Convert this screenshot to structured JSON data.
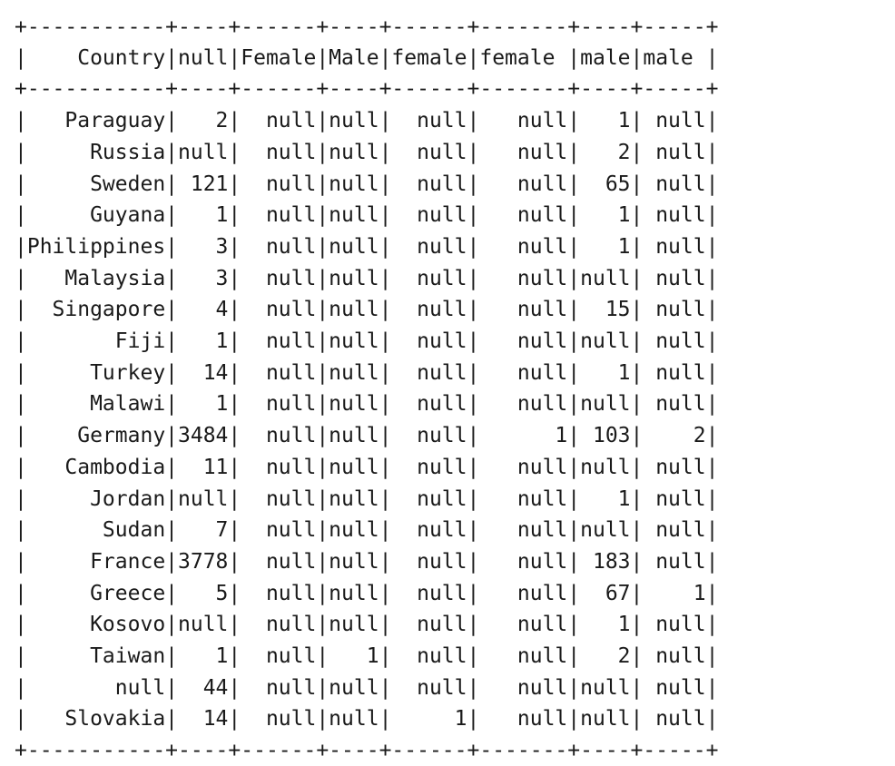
{
  "table": {
    "border": "+-----------+----+------+----+------+-------+----+-----+",
    "header": "|    Country|null|Female|Male|female|female |male|male |",
    "rows": [
      "|   Paraguay|   2|  null|null|  null|   null|   1| null|",
      "|     Russia|null|  null|null|  null|   null|   2| null|",
      "|     Sweden| 121|  null|null|  null|   null|  65| null|",
      "|     Guyana|   1|  null|null|  null|   null|   1| null|",
      "|Philippines|   3|  null|null|  null|   null|   1| null|",
      "|   Malaysia|   3|  null|null|  null|   null|null| null|",
      "|  Singapore|   4|  null|null|  null|   null|  15| null|",
      "|       Fiji|   1|  null|null|  null|   null|null| null|",
      "|     Turkey|  14|  null|null|  null|   null|   1| null|",
      "|     Malawi|   1|  null|null|  null|   null|null| null|",
      "|    Germany|3484|  null|null|  null|      1| 103|    2|",
      "|   Cambodia|  11|  null|null|  null|   null|null| null|",
      "|     Jordan|null|  null|null|  null|   null|   1| null|",
      "|      Sudan|   7|  null|null|  null|   null|null| null|",
      "|     France|3778|  null|null|  null|   null| 183| null|",
      "|     Greece|   5|  null|null|  null|   null|  67|    1|",
      "|     Kosovo|null|  null|null|  null|   null|   1| null|",
      "|     Taiwan|   1|  null|   1|  null|   null|   2| null|",
      "|       null|  44|  null|null|  null|   null|null| null|",
      "|   Slovakia|  14|  null|null|     1|   null|null| null|"
    ]
  }
}
